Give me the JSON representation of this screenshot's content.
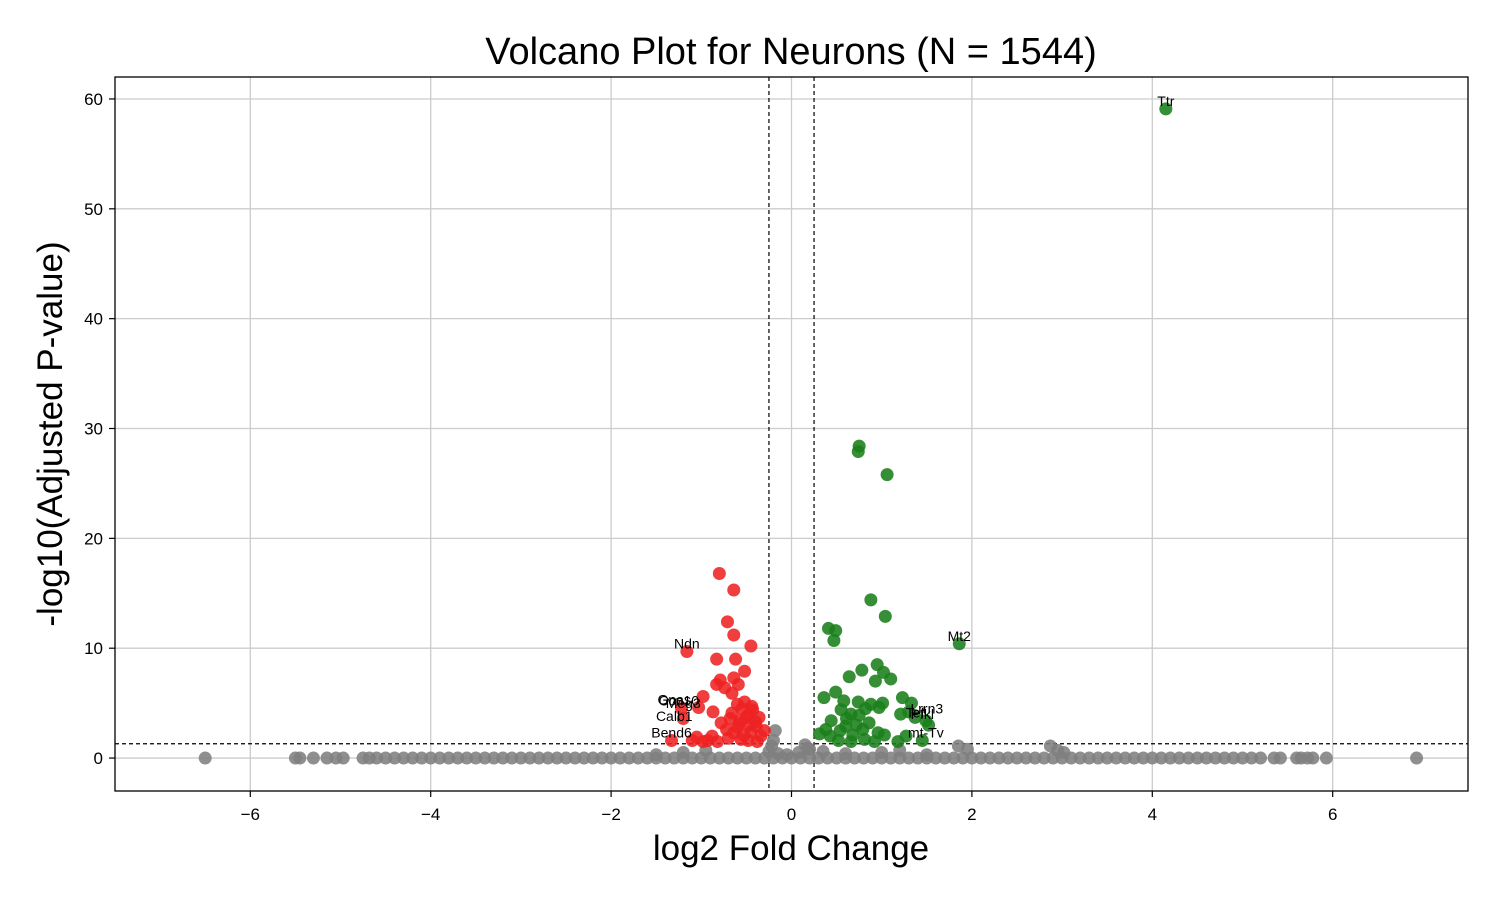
{
  "chart_data": {
    "type": "scatter",
    "title": "Volcano Plot for Neurons (N = 1544)",
    "xlabel": "log2 Fold Change",
    "ylabel": "-log10(Adjusted P-value)",
    "xlim": [
      -7.5,
      7.5
    ],
    "ylim": [
      -3,
      62
    ],
    "xticks": [
      -6,
      -4,
      -2,
      0,
      2,
      4,
      6
    ],
    "yticks": [
      0,
      10,
      20,
      30,
      40,
      50,
      60
    ],
    "grid": true,
    "thresholds": {
      "log2fc": [
        -0.25,
        0.25
      ],
      "neg_log10_padj": 1.3
    },
    "colors": {
      "up": "#1a7f1a",
      "down": "#ee2222",
      "ns": "#808080"
    },
    "series": [
      {
        "name": "up",
        "points": [
          [
            4.15,
            59.1
          ],
          [
            0.75,
            28.4
          ],
          [
            0.74,
            27.9
          ],
          [
            1.06,
            25.8
          ],
          [
            0.88,
            14.4
          ],
          [
            1.04,
            12.9
          ],
          [
            1.86,
            10.4
          ],
          [
            0.41,
            11.8
          ],
          [
            0.49,
            11.6
          ],
          [
            0.47,
            10.7
          ],
          [
            0.95,
            8.5
          ],
          [
            0.78,
            8.0
          ],
          [
            1.02,
            7.8
          ],
          [
            1.1,
            7.2
          ],
          [
            0.64,
            7.4
          ],
          [
            0.93,
            7.0
          ],
          [
            0.49,
            6.0
          ],
          [
            0.36,
            5.5
          ],
          [
            0.58,
            5.2
          ],
          [
            0.74,
            5.1
          ],
          [
            0.88,
            4.9
          ],
          [
            1.01,
            5.0
          ],
          [
            1.23,
            5.5
          ],
          [
            1.33,
            5.0
          ],
          [
            0.55,
            4.4
          ],
          [
            0.66,
            4.0
          ],
          [
            0.82,
            4.5
          ],
          [
            0.97,
            4.6
          ],
          [
            1.21,
            4.0
          ],
          [
            1.3,
            4.2
          ],
          [
            1.37,
            3.7
          ],
          [
            1.49,
            3.4
          ],
          [
            0.44,
            3.4
          ],
          [
            0.61,
            3.6
          ],
          [
            0.75,
            3.9
          ],
          [
            0.86,
            3.2
          ],
          [
            1.52,
            3.0
          ],
          [
            0.31,
            2.2
          ],
          [
            0.43,
            2.0
          ],
          [
            0.54,
            2.5
          ],
          [
            0.68,
            2.1
          ],
          [
            0.79,
            2.6
          ],
          [
            0.96,
            2.3
          ],
          [
            1.03,
            2.1
          ],
          [
            1.27,
            2.0
          ],
          [
            1.45,
            1.6
          ],
          [
            0.52,
            1.6
          ],
          [
            0.66,
            1.5
          ],
          [
            0.81,
            1.7
          ],
          [
            0.92,
            1.5
          ],
          [
            1.18,
            1.5
          ],
          [
            0.6,
            2.9
          ],
          [
            0.72,
            3.0
          ],
          [
            0.38,
            2.6
          ]
        ]
      },
      {
        "name": "down",
        "points": [
          [
            -0.8,
            16.8
          ],
          [
            -0.64,
            15.3
          ],
          [
            -0.71,
            12.4
          ],
          [
            -0.64,
            11.2
          ],
          [
            -0.45,
            10.2
          ],
          [
            -1.16,
            9.7
          ],
          [
            -0.83,
            9.0
          ],
          [
            -0.62,
            9.0
          ],
          [
            -0.52,
            7.9
          ],
          [
            -0.79,
            7.1
          ],
          [
            -0.64,
            7.3
          ],
          [
            -0.59,
            6.7
          ],
          [
            -0.83,
            6.7
          ],
          [
            -0.74,
            6.4
          ],
          [
            -0.66,
            5.9
          ],
          [
            -0.98,
            5.6
          ],
          [
            -0.52,
            5.1
          ],
          [
            -1.22,
            4.5
          ],
          [
            -1.03,
            4.6
          ],
          [
            -0.87,
            4.2
          ],
          [
            -0.55,
            4.5
          ],
          [
            -0.43,
            4.4
          ],
          [
            -0.48,
            3.9
          ],
          [
            -0.57,
            3.4
          ],
          [
            -0.68,
            3.6
          ],
          [
            -0.36,
            3.7
          ],
          [
            -1.2,
            3.6
          ],
          [
            -0.78,
            3.2
          ],
          [
            -0.47,
            3.0
          ],
          [
            -0.6,
            2.8
          ],
          [
            -0.39,
            2.9
          ],
          [
            -1.33,
            1.6
          ],
          [
            -1.05,
            1.9
          ],
          [
            -0.93,
            1.6
          ],
          [
            -0.82,
            1.5
          ],
          [
            -0.7,
            1.8
          ],
          [
            -0.56,
            1.7
          ],
          [
            -0.48,
            1.6
          ],
          [
            -0.38,
            1.5
          ],
          [
            -0.64,
            2.3
          ],
          [
            -0.53,
            2.1
          ],
          [
            -0.45,
            2.4
          ],
          [
            -0.34,
            2.0
          ],
          [
            -0.72,
            2.6
          ],
          [
            -0.6,
            4.9
          ],
          [
            -0.44,
            4.7
          ],
          [
            -0.5,
            3.7
          ],
          [
            -0.66,
            4.1
          ],
          [
            -0.58,
            3.1
          ],
          [
            -0.4,
            3.3
          ],
          [
            -0.3,
            2.5
          ],
          [
            -0.88,
            2.0
          ],
          [
            -0.98,
            1.5
          ],
          [
            -1.1,
            1.6
          ]
        ]
      },
      {
        "name": "ns",
        "points": [
          [
            -6.5,
            0
          ],
          [
            -5.5,
            0
          ],
          [
            -5.45,
            0
          ],
          [
            -5.3,
            0
          ],
          [
            -5.15,
            0
          ],
          [
            -5.05,
            0
          ],
          [
            -4.97,
            0
          ],
          [
            -4.75,
            0
          ],
          [
            -4.68,
            0
          ],
          [
            -4.6,
            0
          ],
          [
            -4.5,
            0
          ],
          [
            -4.4,
            0
          ],
          [
            -4.3,
            0
          ],
          [
            -4.2,
            0
          ],
          [
            -4.1,
            0
          ],
          [
            -4.0,
            0
          ],
          [
            -3.9,
            0
          ],
          [
            -3.8,
            0
          ],
          [
            -3.7,
            0
          ],
          [
            -3.6,
            0
          ],
          [
            -3.5,
            0
          ],
          [
            -3.4,
            0
          ],
          [
            -3.3,
            0
          ],
          [
            -3.2,
            0
          ],
          [
            -3.1,
            0
          ],
          [
            -3.0,
            0
          ],
          [
            -2.9,
            0
          ],
          [
            -2.8,
            0
          ],
          [
            -2.7,
            0
          ],
          [
            -2.6,
            0
          ],
          [
            -2.5,
            0
          ],
          [
            -2.4,
            0
          ],
          [
            -2.3,
            0
          ],
          [
            -2.2,
            0
          ],
          [
            -2.1,
            0
          ],
          [
            -2.0,
            0
          ],
          [
            -1.9,
            0
          ],
          [
            -1.8,
            0
          ],
          [
            -1.7,
            0
          ],
          [
            -1.6,
            0
          ],
          [
            -1.5,
            0
          ],
          [
            -1.4,
            0
          ],
          [
            -1.3,
            0
          ],
          [
            -1.2,
            0
          ],
          [
            -1.1,
            0
          ],
          [
            -1.0,
            0
          ],
          [
            -0.9,
            0
          ],
          [
            -0.8,
            0
          ],
          [
            -0.7,
            0
          ],
          [
            -0.6,
            0
          ],
          [
            -0.5,
            0
          ],
          [
            -0.4,
            0
          ],
          [
            -0.3,
            0
          ],
          [
            -0.2,
            0
          ],
          [
            -0.1,
            0
          ],
          [
            0.0,
            0
          ],
          [
            0.1,
            0
          ],
          [
            0.2,
            0
          ],
          [
            0.3,
            0
          ],
          [
            0.4,
            0
          ],
          [
            0.5,
            0
          ],
          [
            0.6,
            0
          ],
          [
            0.7,
            0
          ],
          [
            0.8,
            0
          ],
          [
            0.9,
            0
          ],
          [
            1.0,
            0
          ],
          [
            1.1,
            0
          ],
          [
            1.2,
            0
          ],
          [
            1.3,
            0
          ],
          [
            1.4,
            0
          ],
          [
            1.5,
            0
          ],
          [
            1.6,
            0
          ],
          [
            1.7,
            0
          ],
          [
            1.8,
            0
          ],
          [
            1.9,
            0
          ],
          [
            2.0,
            0
          ],
          [
            2.1,
            0
          ],
          [
            2.2,
            0
          ],
          [
            2.3,
            0
          ],
          [
            2.4,
            0
          ],
          [
            2.5,
            0
          ],
          [
            2.6,
            0
          ],
          [
            2.7,
            0
          ],
          [
            2.8,
            0
          ],
          [
            2.9,
            0
          ],
          [
            3.0,
            0
          ],
          [
            3.1,
            0
          ],
          [
            3.2,
            0
          ],
          [
            3.3,
            0
          ],
          [
            3.4,
            0
          ],
          [
            3.5,
            0
          ],
          [
            3.6,
            0
          ],
          [
            3.7,
            0
          ],
          [
            3.8,
            0
          ],
          [
            3.9,
            0
          ],
          [
            4.0,
            0
          ],
          [
            4.1,
            0
          ],
          [
            4.2,
            0
          ],
          [
            4.3,
            0
          ],
          [
            4.4,
            0
          ],
          [
            4.5,
            0
          ],
          [
            4.6,
            0
          ],
          [
            4.7,
            0
          ],
          [
            4.8,
            0
          ],
          [
            4.9,
            0
          ],
          [
            5.0,
            0
          ],
          [
            5.1,
            0
          ],
          [
            5.2,
            0
          ],
          [
            5.35,
            0
          ],
          [
            5.42,
            0
          ],
          [
            5.6,
            0
          ],
          [
            5.65,
            0
          ],
          [
            5.72,
            0
          ],
          [
            5.78,
            0
          ],
          [
            5.93,
            0
          ],
          [
            6.93,
            0
          ],
          [
            -0.25,
            0.6
          ],
          [
            -0.15,
            0.4
          ],
          [
            -0.05,
            0.3
          ],
          [
            0.08,
            0.5
          ],
          [
            0.2,
            0.8
          ],
          [
            -0.22,
            1.1
          ],
          [
            0.18,
            0.9
          ],
          [
            -0.18,
            2.5
          ],
          [
            -0.2,
            1.6
          ],
          [
            0.15,
            1.2
          ],
          [
            -1.5,
            0.3
          ],
          [
            1.5,
            0.3
          ],
          [
            1.85,
            1.1
          ],
          [
            1.95,
            0.8
          ],
          [
            2.87,
            1.1
          ],
          [
            2.95,
            0.7
          ],
          [
            3.02,
            0.5
          ],
          [
            -1.2,
            0.5
          ],
          [
            -0.95,
            0.7
          ],
          [
            0.35,
            0.6
          ],
          [
            0.6,
            0.4
          ],
          [
            1.0,
            0.5
          ],
          [
            1.2,
            0.7
          ]
        ]
      }
    ],
    "annotations": [
      {
        "text": "Ttr",
        "x": 4.15,
        "y": 59.1
      },
      {
        "text": "Mt2",
        "x": 1.86,
        "y": 10.4
      },
      {
        "text": "Ndn",
        "x": -1.16,
        "y": 9.7
      },
      {
        "text": "Gnas",
        "x": -1.3,
        "y": 4.6
      },
      {
        "text": "Ccn10",
        "x": -1.25,
        "y": 4.5
      },
      {
        "text": "Meg3",
        "x": -1.2,
        "y": 4.3
      },
      {
        "text": "Calb1",
        "x": -1.3,
        "y": 3.1
      },
      {
        "text": "Bend6",
        "x": -1.33,
        "y": 1.6
      },
      {
        "text": "Lrrn3",
        "x": 1.5,
        "y": 3.8
      },
      {
        "text": "Tef",
        "x": 1.37,
        "y": 3.4
      },
      {
        "text": "Pfkl",
        "x": 1.45,
        "y": 3.3
      },
      {
        "text": "mt-Tv",
        "x": 1.49,
        "y": 1.6
      }
    ]
  }
}
